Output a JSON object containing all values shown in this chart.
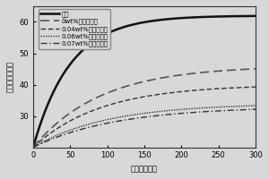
{
  "xlabel": "时间（分钟）",
  "ylabel": "温度（摄氏度）",
  "xlim": [
    0,
    300
  ],
  "ylim": [
    20,
    65
  ],
  "yticks": [
    30,
    40,
    50,
    60
  ],
  "xticks": [
    0,
    50,
    100,
    150,
    200,
    250,
    300
  ],
  "series": [
    {
      "label": "玻璃",
      "linestyle": "solid",
      "color": "#111111",
      "linewidth": 1.8,
      "y_end": 62,
      "y_start": 20,
      "k": 0.02
    },
    {
      "label": "0wt%掺麆氧化钒",
      "color": "#555555",
      "linewidth": 1.2,
      "dashes": [
        6,
        3
      ],
      "y_end": 46,
      "y_start": 20,
      "k": 0.011
    },
    {
      "label": "0.04wt%掺麆氧化钒",
      "color": "#333333",
      "linewidth": 1.0,
      "dashes": [
        4,
        2
      ],
      "y_end": 40,
      "y_start": 20,
      "k": 0.011
    },
    {
      "label": "0.06wt%掺麆氧化钒",
      "color": "#333333",
      "linewidth": 1.0,
      "dashes": [
        1,
        1
      ],
      "y_end": 34,
      "y_start": 20,
      "k": 0.01
    },
    {
      "label": "0.07wt%掺麆氧化钒",
      "color": "#333333",
      "linewidth": 1.0,
      "dashes": [
        5,
        2,
        1,
        2
      ],
      "y_end": 33,
      "y_start": 20,
      "k": 0.009
    }
  ],
  "background_color": "#d8d8d8",
  "legend_fontsize": 5.0,
  "axis_fontsize": 6.0,
  "tick_fontsize": 6.0
}
